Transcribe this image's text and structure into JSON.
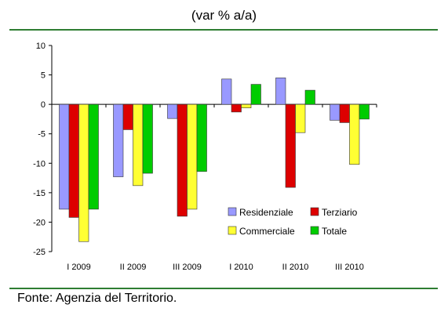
{
  "header": {
    "subtitle": "(var % a/a)"
  },
  "footer": {
    "source": "Fonte: Agenzia del Territorio."
  },
  "chart_data": {
    "type": "bar",
    "categories": [
      "I 2009",
      "II 2009",
      "III 2009",
      "I 2010",
      "II 2010",
      "III 2010"
    ],
    "series": [
      {
        "name": "Residenziale",
        "color": "#9999ff",
        "values": [
          -17.8,
          -12.3,
          -2.4,
          4.3,
          4.5,
          -2.7
        ]
      },
      {
        "name": "Terziario",
        "color": "#dd0000",
        "values": [
          -19.2,
          -4.3,
          -19.0,
          -1.3,
          -14.1,
          -3.1
        ]
      },
      {
        "name": "Commerciale",
        "color": "#ffff33",
        "values": [
          -23.3,
          -13.8,
          -17.8,
          -0.6,
          -4.8,
          -10.2
        ]
      },
      {
        "name": "Totale",
        "color": "#00cc00",
        "values": [
          -17.8,
          -11.7,
          -11.4,
          3.4,
          2.4,
          -2.5
        ]
      }
    ],
    "yticks": [
      10,
      5,
      0,
      -5,
      -10,
      -15,
      -20,
      -25
    ],
    "ylim": [
      -25,
      10
    ],
    "grid": false,
    "legend": "lower-right inside plot, two columns"
  }
}
